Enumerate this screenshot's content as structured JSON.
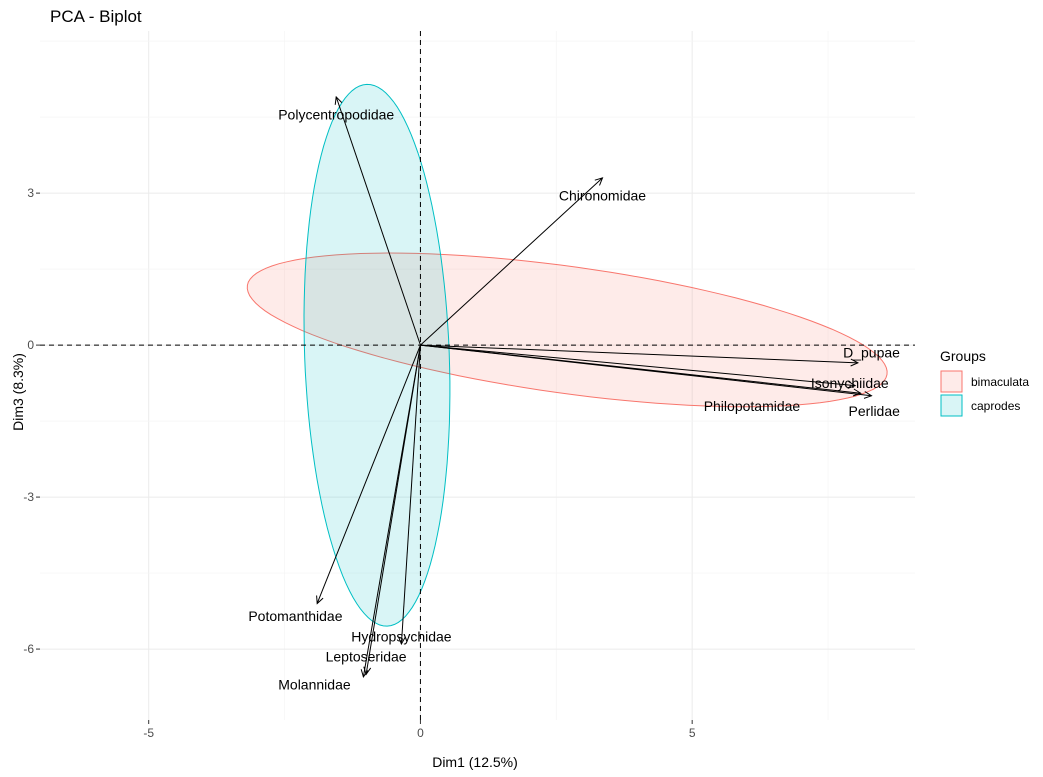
{
  "chart_data": {
    "type": "scatter",
    "subtype": "pca-biplot",
    "title": "PCA - Biplot",
    "xlabel": "Dim1 (12.5%)",
    "ylabel": "Dim3 (8.3%)",
    "xlim": [
      -7.0,
      9.1
    ],
    "ylim": [
      -7.4,
      6.2
    ],
    "x_ticks": [
      -5,
      0,
      5
    ],
    "x_tick_labels": [
      "-5",
      "0",
      "5"
    ],
    "y_ticks": [
      -6,
      -3,
      0,
      3
    ],
    "y_tick_labels": [
      "-6",
      "-3",
      "0",
      "3"
    ],
    "grid": true,
    "reference_lines": {
      "x": 0,
      "y": 0,
      "style": "dashed"
    },
    "variables": [
      {
        "name": "Polycentropodidae",
        "x": -1.55,
        "y": 4.9,
        "label_x": -1.55,
        "label_y": 4.55
      },
      {
        "name": "Chironomidae",
        "x": 3.35,
        "y": 3.3,
        "label_x": 3.35,
        "label_y": 2.95
      },
      {
        "name": "D_pupae",
        "x": 8.05,
        "y": -0.35,
        "label_x": 8.3,
        "label_y": -0.15
      },
      {
        "name": "Isonychiidae",
        "x": 8.0,
        "y": -0.8,
        "label_x": 7.9,
        "label_y": -0.75
      },
      {
        "name": "Philopotamidae",
        "x": 8.1,
        "y": -0.95,
        "label_x": 6.1,
        "label_y": -1.2
      },
      {
        "name": "Perlidae",
        "x": 8.3,
        "y": -1.0,
        "label_x": 8.35,
        "label_y": -1.3
      },
      {
        "name": "Potomanthidae",
        "x": -1.9,
        "y": -5.1,
        "label_x": -2.3,
        "label_y": -5.35
      },
      {
        "name": "Hydropsychidae",
        "x": -0.35,
        "y": -5.9,
        "label_x": -0.35,
        "label_y": -5.75
      },
      {
        "name": "Leptoseridae",
        "x": -1.0,
        "y": -6.5,
        "label_x": -1.0,
        "label_y": -6.15
      },
      {
        "name": "Molannidae",
        "x": -1.05,
        "y": -6.55,
        "label_x": -1.95,
        "label_y": -6.7
      }
    ],
    "groups": [
      {
        "name": "bimaculata",
        "fill": "#f8766d",
        "stroke": "#f8766d",
        "ellipse": {
          "cx": 2.7,
          "cy": 0.3,
          "rx": 5.95,
          "ry": 1.25,
          "angle_deg": -8.5
        }
      },
      {
        "name": "caprodes",
        "fill": "#00bfc4",
        "stroke": "#00bfc4",
        "ellipse": {
          "cx": -0.8,
          "cy": -0.2,
          "rx": 1.33,
          "ry": 5.35,
          "angle_deg": 2.0
        }
      }
    ],
    "legend": {
      "title": "Groups",
      "position": "right"
    }
  }
}
